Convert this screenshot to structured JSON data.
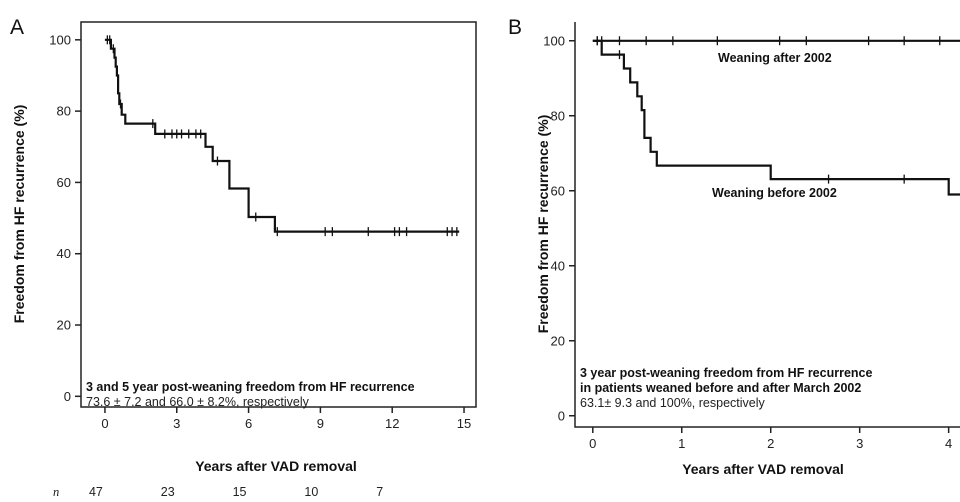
{
  "chart_data": [
    {
      "panel": "A",
      "type": "line",
      "step": true,
      "xlabel": "Years after VAD removal",
      "ylabel": "Freedom from HF recurrence (%)",
      "xlim": [
        -1,
        15.5
      ],
      "ylim": [
        -3,
        105
      ],
      "xticks": [
        0,
        3,
        6,
        9,
        12,
        15
      ],
      "yticks": [
        0,
        20,
        40,
        60,
        80,
        100
      ],
      "series": [
        {
          "points": [
            [
              0,
              100
            ],
            [
              0.25,
              100
            ],
            [
              0.25,
              97.5
            ],
            [
              0.4,
              97.5
            ],
            [
              0.4,
              95
            ],
            [
              0.45,
              95
            ],
            [
              0.45,
              92.5
            ],
            [
              0.5,
              92.5
            ],
            [
              0.5,
              90
            ],
            [
              0.55,
              90
            ],
            [
              0.55,
              85
            ],
            [
              0.6,
              85
            ],
            [
              0.6,
              82
            ],
            [
              0.7,
              82
            ],
            [
              0.7,
              79
            ],
            [
              0.85,
              79
            ],
            [
              0.85,
              76.5
            ],
            [
              2.1,
              76.5
            ],
            [
              2.1,
              73.6
            ],
            [
              4.2,
              73.6
            ],
            [
              4.2,
              70
            ],
            [
              4.5,
              70
            ],
            [
              4.5,
              66
            ],
            [
              5.2,
              66
            ],
            [
              5.2,
              58.3
            ],
            [
              6.0,
              58.3
            ],
            [
              6.0,
              50.3
            ],
            [
              7.1,
              50.3
            ],
            [
              7.1,
              46.2
            ],
            [
              14.8,
              46.2
            ]
          ],
          "censored": [
            [
              0.1,
              100
            ],
            [
              0.2,
              100
            ],
            [
              0.35,
              97.5
            ],
            [
              0.65,
              82
            ],
            [
              2.0,
              76.5
            ],
            [
              2.5,
              73.6
            ],
            [
              2.8,
              73.6
            ],
            [
              3.0,
              73.6
            ],
            [
              3.2,
              73.6
            ],
            [
              3.5,
              73.6
            ],
            [
              3.8,
              73.6
            ],
            [
              4.0,
              73.6
            ],
            [
              4.7,
              66
            ],
            [
              6.3,
              50.3
            ],
            [
              7.2,
              46.2
            ],
            [
              9.2,
              46.2
            ],
            [
              9.5,
              46.2
            ],
            [
              11.0,
              46.2
            ],
            [
              12.1,
              46.2
            ],
            [
              12.3,
              46.2
            ],
            [
              12.6,
              46.2
            ],
            [
              14.3,
              46.2
            ],
            [
              14.5,
              46.2
            ],
            [
              14.7,
              46.2
            ]
          ]
        }
      ],
      "annotation": {
        "line1": "3 and 5 year post-weaning freedom from HF recurrence",
        "line2": "73.6 ± 7.2 and 66.0 ± 8.2%, respectively"
      },
      "at_risk": {
        "label": "n",
        "times": [
          0,
          3,
          6,
          9,
          12
        ],
        "values": [
          "47",
          "23",
          "15",
          "10",
          "7"
        ]
      }
    },
    {
      "panel": "B",
      "type": "line",
      "step": true,
      "xlabel": "Years after VAD removal",
      "ylabel": "Freedom from HF recurrence (%)",
      "xlim": [
        -0.2,
        4.15
      ],
      "ylim": [
        -3,
        105
      ],
      "xticks": [
        0,
        1,
        2,
        3,
        4
      ],
      "yticks": [
        0,
        20,
        40,
        60,
        80,
        100
      ],
      "series": [
        {
          "name": "Weaning after 2002",
          "points": [
            [
              0,
              100
            ],
            [
              4.15,
              100
            ]
          ],
          "censored": [
            [
              0.05,
              100
            ],
            [
              0.1,
              100
            ],
            [
              0.3,
              100
            ],
            [
              0.6,
              100
            ],
            [
              0.9,
              100
            ],
            [
              1.4,
              100
            ],
            [
              2.1,
              100
            ],
            [
              2.4,
              100
            ],
            [
              3.1,
              100
            ],
            [
              3.5,
              100
            ],
            [
              3.9,
              100
            ]
          ]
        },
        {
          "name": "Weaning before 2002",
          "points": [
            [
              0,
              100
            ],
            [
              0.1,
              100
            ],
            [
              0.1,
              96.3
            ],
            [
              0.35,
              96.3
            ],
            [
              0.35,
              92.6
            ],
            [
              0.42,
              92.6
            ],
            [
              0.42,
              88.9
            ],
            [
              0.5,
              88.9
            ],
            [
              0.5,
              85.2
            ],
            [
              0.55,
              85.2
            ],
            [
              0.55,
              81.5
            ],
            [
              0.58,
              81.5
            ],
            [
              0.58,
              74.1
            ],
            [
              0.65,
              74.1
            ],
            [
              0.65,
              70.4
            ],
            [
              0.72,
              70.4
            ],
            [
              0.72,
              66.7
            ],
            [
              2.0,
              66.7
            ],
            [
              2.0,
              63.1
            ],
            [
              4.0,
              63.1
            ],
            [
              4.0,
              59
            ],
            [
              4.15,
              59
            ]
          ],
          "censored": [
            [
              0.05,
              100
            ],
            [
              0.3,
              96.3
            ],
            [
              2.65,
              63.1
            ],
            [
              3.5,
              63.1
            ]
          ]
        }
      ],
      "annotation": {
        "line1": "3 year post-weaning freedom from HF recurrence",
        "line2": "in patients weaned before and after March 2002",
        "line3": "63.1± 9.3 and 100%, respectively"
      }
    }
  ]
}
